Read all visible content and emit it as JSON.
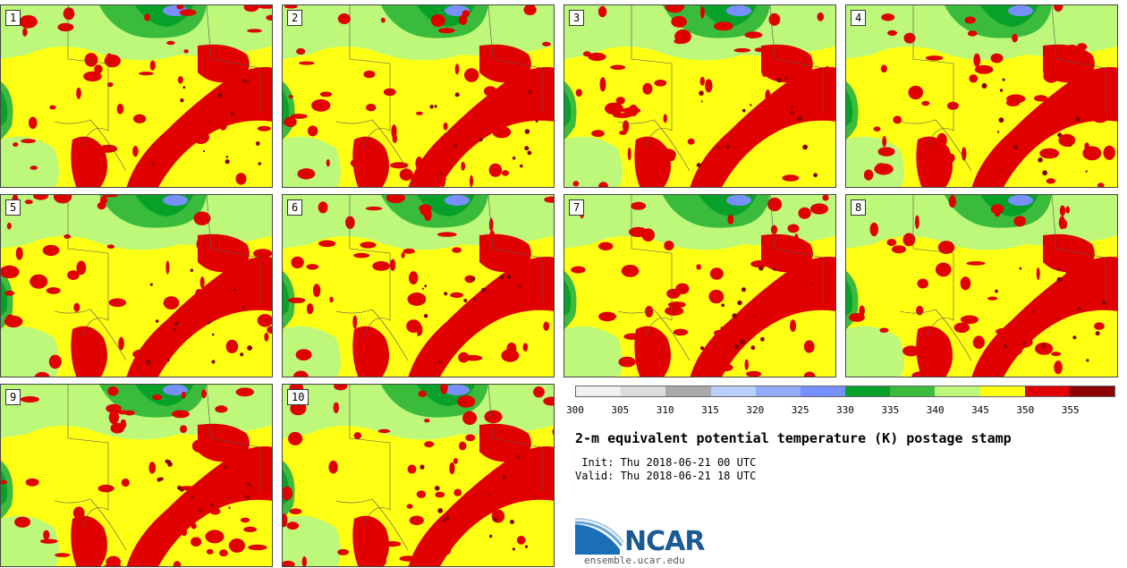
{
  "panels": [
    {
      "label": "1"
    },
    {
      "label": "2"
    },
    {
      "label": "3"
    },
    {
      "label": "4"
    },
    {
      "label": "5"
    },
    {
      "label": "6"
    },
    {
      "label": "7"
    },
    {
      "label": "8"
    },
    {
      "label": "9"
    },
    {
      "label": "10"
    }
  ],
  "colorbar": {
    "colors": [
      "#f0f0f0",
      "#dcdcdc",
      "#a9a9a9",
      "#b6cffb",
      "#93acf9",
      "#7890ff",
      "#07a12a",
      "#3bbb3b",
      "#bdf87a",
      "#ffff14",
      "#e00000",
      "#8b0000"
    ],
    "ticks": [
      "300",
      "305",
      "310",
      "315",
      "320",
      "325",
      "330",
      "335",
      "340",
      "345",
      "350",
      "355"
    ]
  },
  "title": "2-m equivalent potential temperature (K) postage stamp",
  "init": " Init: Thu 2018-06-21 00 UTC",
  "valid": "Valid: Thu 2018-06-21 18 UTC",
  "logo": {
    "text": "NCAR",
    "site": "ensemble.ucar.edu"
  }
}
